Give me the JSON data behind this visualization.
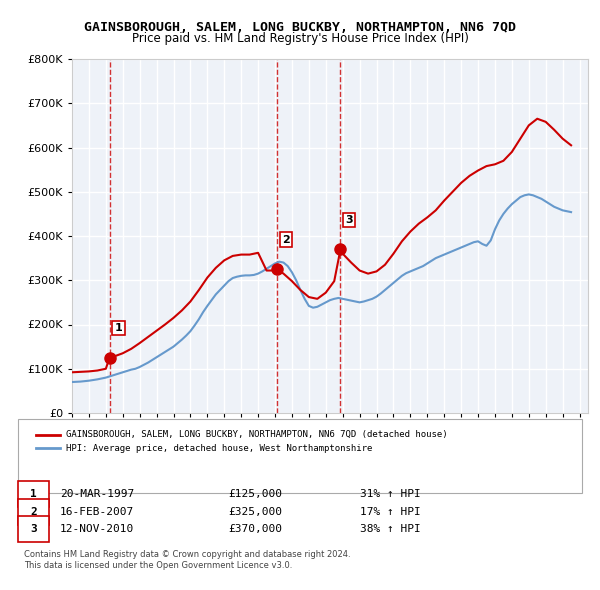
{
  "title": "GAINSBOROUGH, SALEM, LONG BUCKBY, NORTHAMPTON, NN6 7QD",
  "subtitle": "Price paid vs. HM Land Registry's House Price Index (HPI)",
  "ylim": [
    0,
    800000
  ],
  "yticks": [
    0,
    100000,
    200000,
    300000,
    400000,
    500000,
    600000,
    700000,
    800000
  ],
  "xlim_start": 1995.0,
  "xlim_end": 2025.5,
  "bg_color": "#eef2f8",
  "plot_bg_color": "#eef2f8",
  "grid_color": "#ffffff",
  "red_line_color": "#cc0000",
  "blue_line_color": "#6699cc",
  "sale_color": "#cc0000",
  "vline_color": "#cc0000",
  "transactions": [
    {
      "num": 1,
      "date": 1997.22,
      "price": 125000,
      "label": "20-MAR-1997",
      "amount": "£125,000",
      "hpi": "31% ↑ HPI"
    },
    {
      "num": 2,
      "date": 2007.12,
      "price": 325000,
      "label": "16-FEB-2007",
      "amount": "£325,000",
      "hpi": "17% ↑ HPI"
    },
    {
      "num": 3,
      "date": 2010.87,
      "price": 370000,
      "label": "12-NOV-2010",
      "amount": "£370,000",
      "hpi": "38% ↑ HPI"
    }
  ],
  "legend_line1": "GAINSBOROUGH, SALEM, LONG BUCKBY, NORTHAMPTON, NN6 7QD (detached house)",
  "legend_line2": "HPI: Average price, detached house, West Northamptonshire",
  "footer1": "Contains HM Land Registry data © Crown copyright and database right 2024.",
  "footer2": "This data is licensed under the Open Government Licence v3.0.",
  "hpi_data": {
    "years": [
      1995.0,
      1995.25,
      1995.5,
      1995.75,
      1996.0,
      1996.25,
      1996.5,
      1996.75,
      1997.0,
      1997.25,
      1997.5,
      1997.75,
      1998.0,
      1998.25,
      1998.5,
      1998.75,
      1999.0,
      1999.25,
      1999.5,
      1999.75,
      2000.0,
      2000.25,
      2000.5,
      2000.75,
      2001.0,
      2001.25,
      2001.5,
      2001.75,
      2002.0,
      2002.25,
      2002.5,
      2002.75,
      2003.0,
      2003.25,
      2003.5,
      2003.75,
      2004.0,
      2004.25,
      2004.5,
      2004.75,
      2005.0,
      2005.25,
      2005.5,
      2005.75,
      2006.0,
      2006.25,
      2006.5,
      2006.75,
      2007.0,
      2007.25,
      2007.5,
      2007.75,
      2008.0,
      2008.25,
      2008.5,
      2008.75,
      2009.0,
      2009.25,
      2009.5,
      2009.75,
      2010.0,
      2010.25,
      2010.5,
      2010.75,
      2011.0,
      2011.25,
      2011.5,
      2011.75,
      2012.0,
      2012.25,
      2012.5,
      2012.75,
      2013.0,
      2013.25,
      2013.5,
      2013.75,
      2014.0,
      2014.25,
      2014.5,
      2014.75,
      2015.0,
      2015.25,
      2015.5,
      2015.75,
      2016.0,
      2016.25,
      2016.5,
      2016.75,
      2017.0,
      2017.25,
      2017.5,
      2017.75,
      2018.0,
      2018.25,
      2018.5,
      2018.75,
      2019.0,
      2019.25,
      2019.5,
      2019.75,
      2020.0,
      2020.25,
      2020.5,
      2020.75,
      2021.0,
      2021.25,
      2021.5,
      2021.75,
      2022.0,
      2022.25,
      2022.5,
      2022.75,
      2023.0,
      2023.25,
      2023.5,
      2023.75,
      2024.0,
      2024.25,
      2024.5
    ],
    "values": [
      70000,
      70500,
      71000,
      72000,
      73000,
      74500,
      76000,
      78000,
      80000,
      83000,
      86000,
      89000,
      92000,
      95000,
      98000,
      100000,
      104000,
      109000,
      114000,
      120000,
      126000,
      132000,
      138000,
      144000,
      150000,
      158000,
      166000,
      175000,
      185000,
      198000,
      212000,
      228000,
      242000,
      255000,
      268000,
      278000,
      288000,
      298000,
      305000,
      308000,
      310000,
      311000,
      311000,
      312000,
      315000,
      320000,
      326000,
      332000,
      338000,
      342000,
      340000,
      332000,
      318000,
      300000,
      278000,
      258000,
      242000,
      238000,
      240000,
      245000,
      250000,
      255000,
      258000,
      260000,
      258000,
      256000,
      254000,
      252000,
      250000,
      252000,
      255000,
      258000,
      263000,
      270000,
      278000,
      286000,
      294000,
      302000,
      310000,
      316000,
      320000,
      324000,
      328000,
      332000,
      338000,
      344000,
      350000,
      354000,
      358000,
      362000,
      366000,
      370000,
      374000,
      378000,
      382000,
      386000,
      388000,
      382000,
      378000,
      390000,
      415000,
      435000,
      450000,
      462000,
      472000,
      480000,
      488000,
      492000,
      494000,
      492000,
      488000,
      484000,
      478000,
      472000,
      466000,
      462000,
      458000,
      456000,
      454000
    ]
  },
  "red_data": {
    "years": [
      1995.0,
      1995.5,
      1996.0,
      1996.5,
      1997.0,
      1997.22,
      1997.5,
      1998.0,
      1998.5,
      1999.0,
      1999.5,
      2000.0,
      2000.5,
      2001.0,
      2001.5,
      2002.0,
      2002.5,
      2003.0,
      2003.5,
      2004.0,
      2004.5,
      2005.0,
      2005.5,
      2006.0,
      2006.5,
      2007.0,
      2007.12,
      2007.5,
      2008.0,
      2008.5,
      2009.0,
      2009.5,
      2010.0,
      2010.5,
      2010.87,
      2011.0,
      2011.5,
      2012.0,
      2012.5,
      2013.0,
      2013.5,
      2014.0,
      2014.5,
      2015.0,
      2015.5,
      2016.0,
      2016.5,
      2017.0,
      2017.5,
      2018.0,
      2018.5,
      2019.0,
      2019.5,
      2020.0,
      2020.5,
      2021.0,
      2021.5,
      2022.0,
      2022.5,
      2023.0,
      2023.5,
      2024.0,
      2024.5
    ],
    "values": [
      92000,
      93000,
      94000,
      96000,
      100000,
      125000,
      128000,
      135000,
      145000,
      158000,
      172000,
      186000,
      200000,
      215000,
      232000,
      252000,
      278000,
      306000,
      328000,
      345000,
      355000,
      358000,
      358000,
      362000,
      322000,
      322000,
      325000,
      315000,
      298000,
      278000,
      262000,
      258000,
      272000,
      298000,
      370000,
      360000,
      340000,
      322000,
      315000,
      320000,
      335000,
      360000,
      388000,
      410000,
      428000,
      442000,
      458000,
      480000,
      500000,
      520000,
      536000,
      548000,
      558000,
      562000,
      570000,
      590000,
      620000,
      650000,
      665000,
      658000,
      640000,
      620000,
      605000
    ]
  }
}
